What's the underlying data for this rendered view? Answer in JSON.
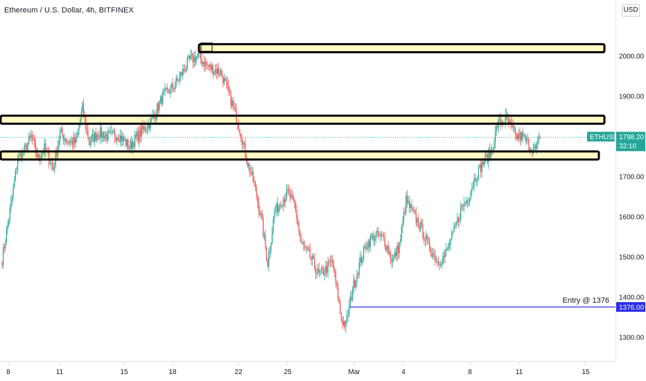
{
  "header": {
    "title": "Ethereum / U.S. Dollar, 4h, BITFINEX",
    "currency_button": "USD"
  },
  "chart_data": {
    "type": "candlestick",
    "symbol": "ETHUSD",
    "interval": "4h",
    "exchange": "BITFINEX",
    "ylim": [
      1240,
      2140
    ],
    "y_ticks": [
      "2000.00",
      "1900.00",
      "1800.00",
      "1700.00",
      "1600.00",
      "1500.00",
      "1400.00",
      "1300.00"
    ],
    "x_ticks": [
      "8",
      "11",
      "15",
      "18",
      "22",
      "25",
      "Mar",
      "4",
      "8",
      "11",
      "15"
    ],
    "colors": {
      "up": "#26a69a",
      "down": "#ef5350",
      "zone_fill": "#fff9c4",
      "zone_border": "#000000",
      "entry_line": "#2a2ee8",
      "price_label": "#26a69a"
    },
    "current_price": {
      "symbol": "ETHUSD",
      "value": "1798.20",
      "countdown": "32:10"
    },
    "entry": {
      "text": "Entry @ 1376",
      "value": "1376.00",
      "price": 1376
    },
    "zones": [
      {
        "top": 2030,
        "bottom": 2010
      },
      {
        "top": 1852,
        "bottom": 1832
      },
      {
        "top": 1763,
        "bottom": 1743
      }
    ],
    "keyframes": [
      [
        0,
        1495
      ],
      [
        8,
        1630
      ],
      [
        14,
        1745
      ],
      [
        20,
        1765
      ],
      [
        26,
        1800
      ],
      [
        32,
        1745
      ],
      [
        38,
        1770
      ],
      [
        46,
        1720
      ],
      [
        52,
        1810
      ],
      [
        58,
        1790
      ],
      [
        66,
        1785
      ],
      [
        72,
        1870
      ],
      [
        78,
        1785
      ],
      [
        86,
        1810
      ],
      [
        96,
        1800
      ],
      [
        104,
        1805
      ],
      [
        114,
        1775
      ],
      [
        124,
        1810
      ],
      [
        134,
        1840
      ],
      [
        144,
        1900
      ],
      [
        154,
        1925
      ],
      [
        168,
        1990
      ],
      [
        176,
        2000
      ],
      [
        184,
        1975
      ],
      [
        196,
        1960
      ],
      [
        204,
        1900
      ],
      [
        212,
        1830
      ],
      [
        220,
        1735
      ],
      [
        226,
        1680
      ],
      [
        232,
        1600
      ],
      [
        238,
        1485
      ],
      [
        244,
        1610
      ],
      [
        250,
        1640
      ],
      [
        256,
        1660
      ],
      [
        262,
        1630
      ],
      [
        268,
        1535
      ],
      [
        276,
        1500
      ],
      [
        284,
        1455
      ],
      [
        290,
        1470
      ],
      [
        296,
        1490
      ],
      [
        304,
        1345
      ],
      [
        308,
        1330
      ],
      [
        314,
        1420
      ],
      [
        320,
        1480
      ],
      [
        326,
        1530
      ],
      [
        334,
        1555
      ],
      [
        342,
        1545
      ],
      [
        350,
        1490
      ],
      [
        356,
        1530
      ],
      [
        362,
        1640
      ],
      [
        368,
        1610
      ],
      [
        374,
        1580
      ],
      [
        382,
        1530
      ],
      [
        390,
        1490
      ],
      [
        396,
        1500
      ],
      [
        404,
        1555
      ],
      [
        412,
        1625
      ],
      [
        418,
        1650
      ],
      [
        424,
        1700
      ],
      [
        432,
        1740
      ],
      [
        438,
        1760
      ],
      [
        444,
        1830
      ],
      [
        452,
        1845
      ],
      [
        460,
        1800
      ],
      [
        466,
        1800
      ],
      [
        472,
        1780
      ],
      [
        478,
        1765
      ],
      [
        482,
        1798
      ]
    ]
  }
}
